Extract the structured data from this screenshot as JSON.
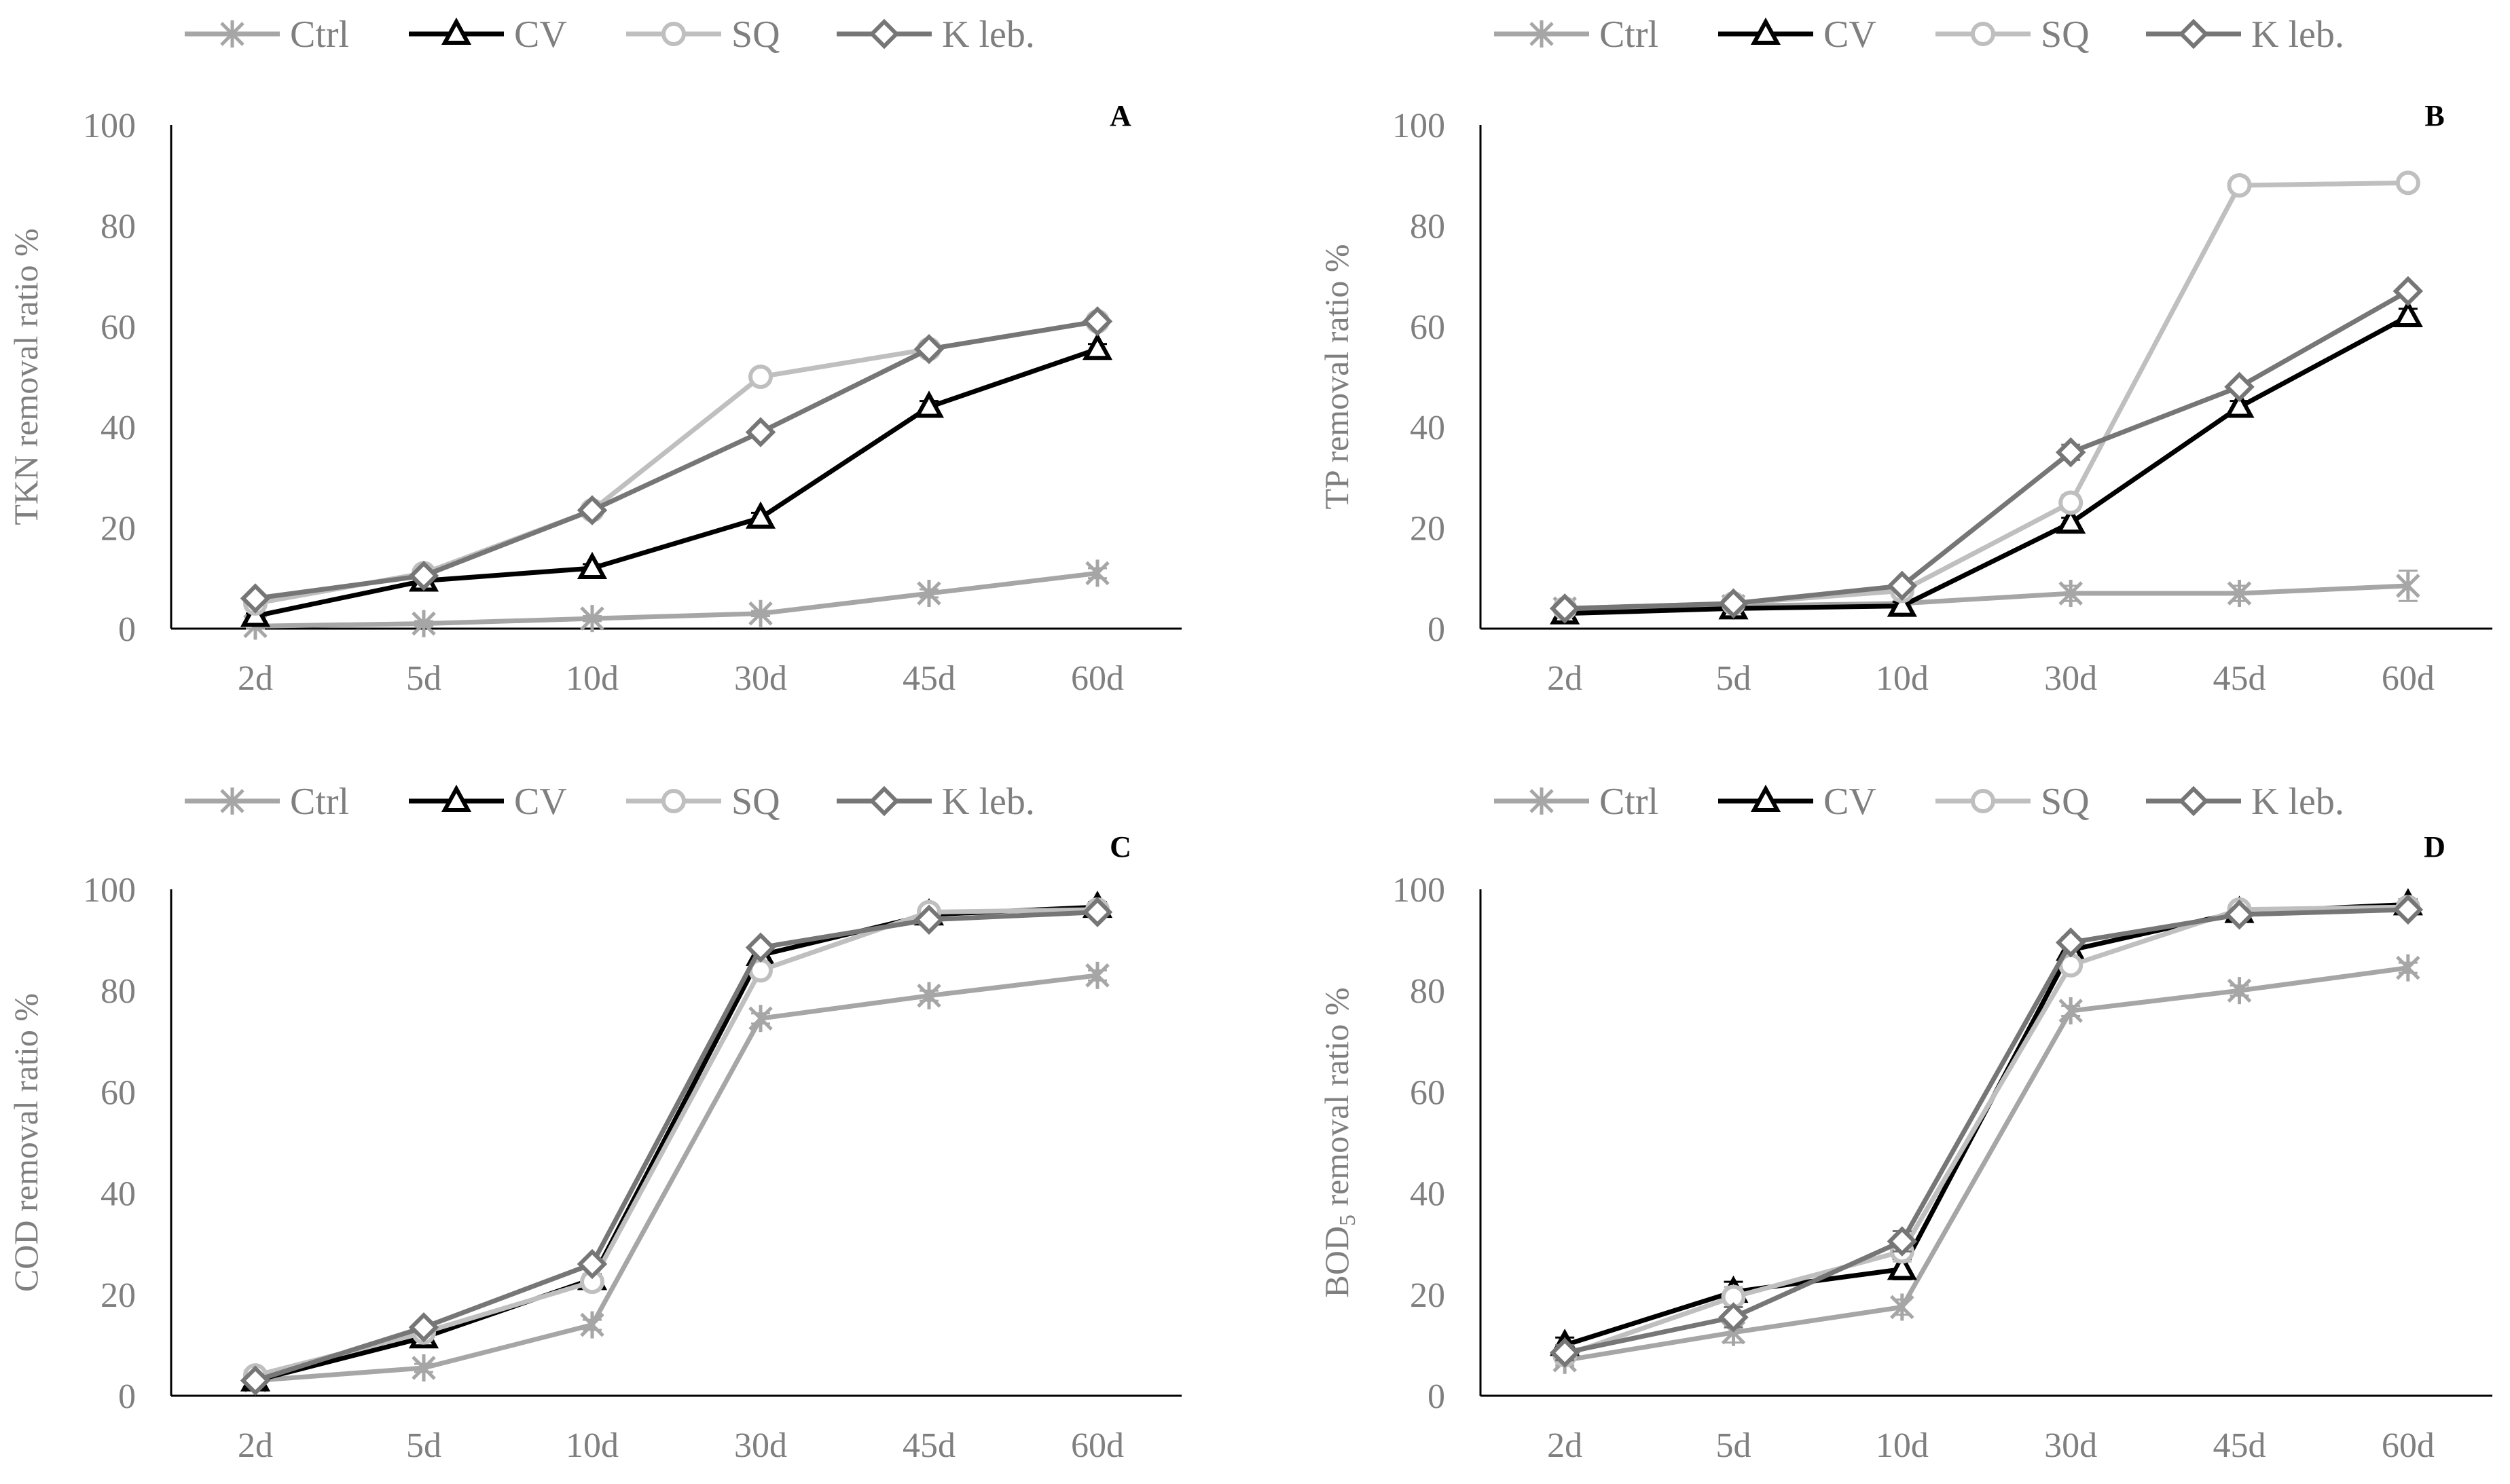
{
  "figure": {
    "legend_labels": [
      "Ctrl",
      "CV",
      "SQ",
      "K leb."
    ]
  },
  "chart_data": [
    {
      "type": "line",
      "panel": "A",
      "title": "",
      "xlabel": "",
      "ylabel": "TKN removal ratio %",
      "ylabel_sub": "",
      "ylim": [
        0,
        100
      ],
      "yticks": [
        0,
        20,
        40,
        60,
        80,
        100
      ],
      "categories": [
        "2d",
        "5d",
        "10d",
        "30d",
        "45d",
        "60d"
      ],
      "legend": "top",
      "series": [
        {
          "name": "Ctrl",
          "marker": "asterisk",
          "color": "#a6a6a6",
          "values": [
            0.5,
            1,
            2,
            3,
            7,
            11
          ],
          "errors": [
            0.5,
            0.5,
            0.5,
            0.5,
            0.8,
            1
          ]
        },
        {
          "name": "CV",
          "marker": "triangle",
          "color": "#000000",
          "values": [
            2.5,
            9.5,
            12,
            22,
            44,
            55.5
          ],
          "errors": [
            0.5,
            0.8,
            0.8,
            1,
            1.2,
            1
          ]
        },
        {
          "name": "SQ",
          "marker": "circle",
          "color": "#bfbfbf",
          "values": [
            5,
            11,
            23.5,
            50,
            55.5,
            61
          ],
          "errors": [
            0.5,
            0.8,
            0.8,
            1,
            1,
            1
          ]
        },
        {
          "name": "K leb.",
          "marker": "diamond",
          "color": "#767676",
          "values": [
            6,
            10.5,
            23.5,
            39,
            55.5,
            61
          ],
          "errors": [
            0.5,
            0.8,
            0.8,
            1,
            1,
            1
          ]
        }
      ]
    },
    {
      "type": "line",
      "panel": "B",
      "title": "",
      "xlabel": "",
      "ylabel": "TP removal ratio %",
      "ylabel_sub": "",
      "ylim": [
        0,
        100
      ],
      "yticks": [
        0,
        20,
        40,
        60,
        80,
        100
      ],
      "categories": [
        "2d",
        "5d",
        "10d",
        "30d",
        "45d",
        "60d"
      ],
      "legend": "top",
      "series": [
        {
          "name": "Ctrl",
          "marker": "asterisk",
          "color": "#a6a6a6",
          "values": [
            4,
            4.5,
            5,
            7,
            7,
            8.5
          ],
          "errors": [
            0.5,
            0.5,
            0.5,
            1.5,
            1.5,
            3
          ]
        },
        {
          "name": "CV",
          "marker": "triangle",
          "color": "#000000",
          "values": [
            3,
            4,
            4.5,
            21,
            44,
            62
          ],
          "errors": [
            0.5,
            0.5,
            0.8,
            1,
            1.2,
            1.5
          ]
        },
        {
          "name": "SQ",
          "marker": "circle",
          "color": "#bfbfbf",
          "values": [
            4,
            5,
            7.5,
            25,
            88,
            88.5
          ],
          "errors": [
            0.5,
            0.5,
            0.8,
            1.5,
            1,
            1
          ]
        },
        {
          "name": "K leb.",
          "marker": "diamond",
          "color": "#767676",
          "values": [
            4,
            5,
            8.5,
            35,
            48,
            67
          ],
          "errors": [
            0.5,
            0.5,
            0.8,
            1.5,
            1,
            1
          ]
        }
      ]
    },
    {
      "type": "line",
      "panel": "C",
      "title": "",
      "xlabel": "",
      "ylabel": "COD removal ratio %",
      "ylabel_sub": "",
      "ylim": [
        0,
        100
      ],
      "yticks": [
        0,
        20,
        40,
        60,
        80,
        100
      ],
      "categories": [
        "2d",
        "5d",
        "10d",
        "30d",
        "45d",
        "60d"
      ],
      "legend": "top",
      "series": [
        {
          "name": "Ctrl",
          "marker": "asterisk",
          "color": "#a6a6a6",
          "values": [
            3,
            5.5,
            14,
            74.5,
            79,
            83
          ],
          "errors": [
            0.5,
            0.8,
            1,
            1,
            1,
            1
          ]
        },
        {
          "name": "CV",
          "marker": "triangle",
          "color": "#000000",
          "values": [
            3,
            11.5,
            23,
            87,
            95,
            96.5
          ],
          "errors": [
            0.5,
            0.8,
            1,
            1,
            1,
            1
          ]
        },
        {
          "name": "SQ",
          "marker": "circle",
          "color": "#bfbfbf",
          "values": [
            4,
            12.5,
            22.5,
            84,
            95.5,
            96
          ],
          "errors": [
            0.5,
            0.8,
            1,
            1,
            1,
            1
          ]
        },
        {
          "name": "K leb.",
          "marker": "diamond",
          "color": "#767676",
          "values": [
            3,
            13.5,
            26,
            88.5,
            94,
            95.5
          ],
          "errors": [
            0.5,
            0.8,
            1,
            1,
            1,
            1
          ]
        }
      ]
    },
    {
      "type": "line",
      "panel": "D",
      "title": "",
      "xlabel": "",
      "ylabel": "BOD",
      "ylabel_sub": "5",
      "ylabel_tail": " removal ratio %",
      "ylim": [
        0,
        100
      ],
      "yticks": [
        0,
        20,
        40,
        60,
        80,
        100
      ],
      "categories": [
        "2d",
        "5d",
        "10d",
        "30d",
        "45d",
        "60d"
      ],
      "legend": "top",
      "series": [
        {
          "name": "Ctrl",
          "marker": "asterisk",
          "color": "#a6a6a6",
          "values": [
            7,
            12.5,
            17.5,
            76,
            80,
            84.5
          ],
          "errors": [
            1,
            2,
            1.5,
            1,
            1,
            1
          ]
        },
        {
          "name": "CV",
          "marker": "triangle",
          "color": "#000000",
          "values": [
            10,
            20.5,
            25,
            88,
            95.5,
            97
          ],
          "errors": [
            1.5,
            2,
            2,
            1,
            1,
            1
          ]
        },
        {
          "name": "SQ",
          "marker": "circle",
          "color": "#bfbfbf",
          "values": [
            8,
            19.5,
            28.5,
            85,
            96,
            96.5
          ],
          "errors": [
            1.5,
            2,
            2,
            1,
            1,
            1
          ]
        },
        {
          "name": "K leb.",
          "marker": "diamond",
          "color": "#767676",
          "values": [
            8.5,
            15.5,
            30.5,
            89.5,
            95,
            96
          ],
          "errors": [
            1.5,
            2,
            2,
            1,
            1,
            1
          ]
        }
      ]
    }
  ]
}
